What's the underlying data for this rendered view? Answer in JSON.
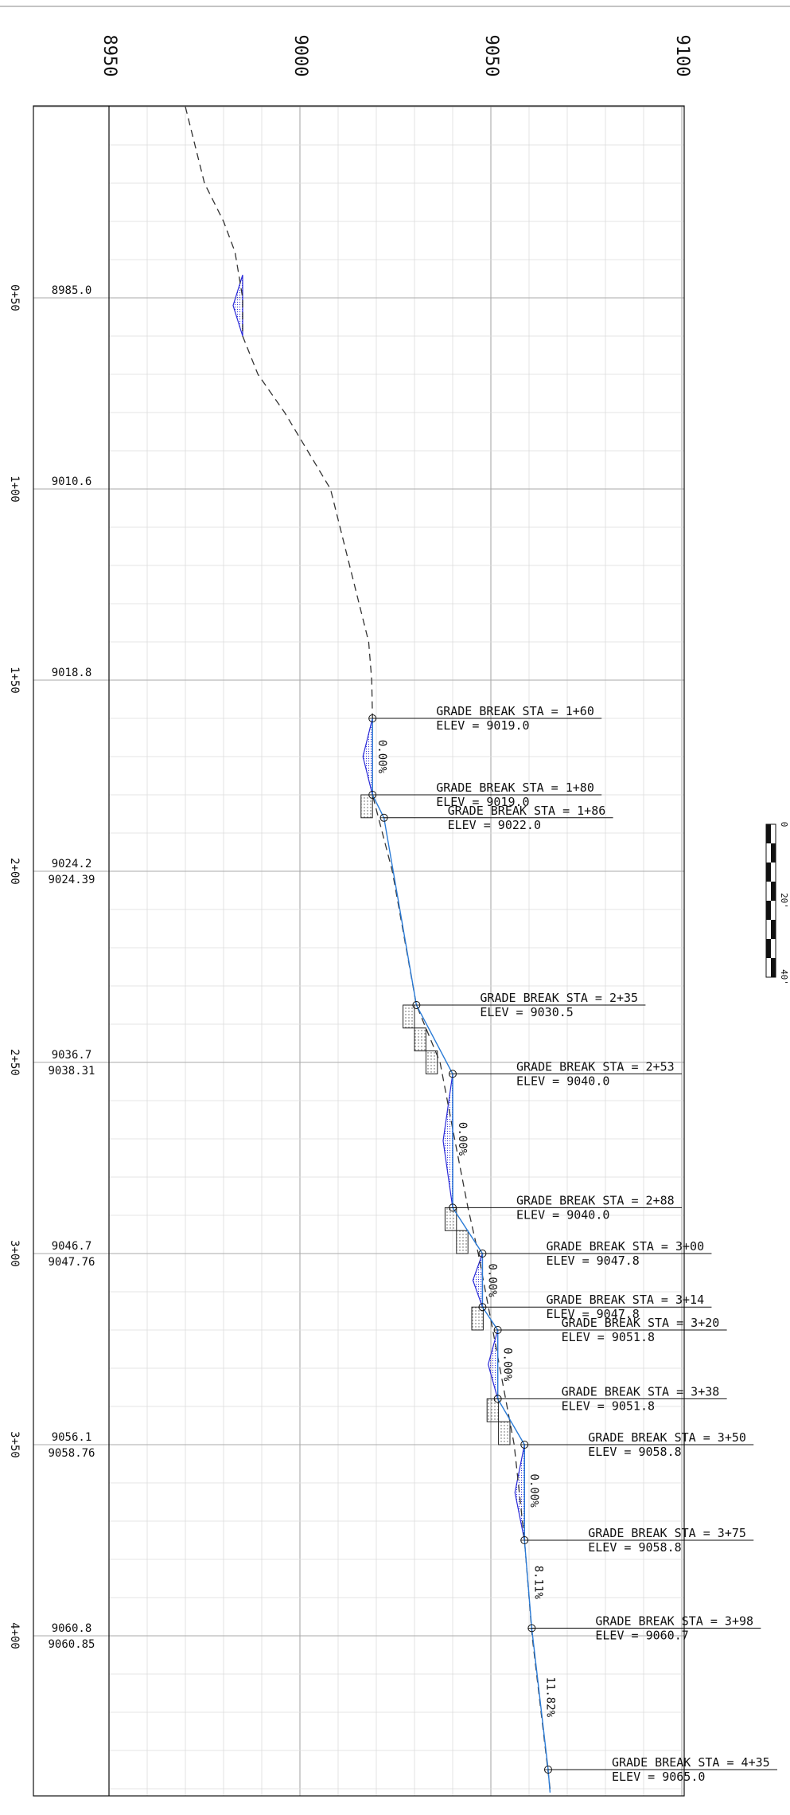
{
  "axis": {
    "ticks": [
      {
        "label": "8950",
        "value": 8950
      },
      {
        "label": "9000",
        "value": 9000
      },
      {
        "label": "9050",
        "value": 9050
      },
      {
        "label": "9100",
        "value": 9100
      }
    ]
  },
  "stations": [
    {
      "label": "0+50",
      "sta": 50,
      "existing": "8985.0",
      "proposed": ""
    },
    {
      "label": "1+00",
      "sta": 100,
      "existing": "9010.6",
      "proposed": ""
    },
    {
      "label": "1+50",
      "sta": 150,
      "existing": "9018.8",
      "proposed": ""
    },
    {
      "label": "2+00",
      "sta": 200,
      "existing": "9024.2",
      "proposed": "9024.39"
    },
    {
      "label": "2+50",
      "sta": 250,
      "existing": "9036.7",
      "proposed": "9038.31"
    },
    {
      "label": "3+00",
      "sta": 300,
      "existing": "9046.7",
      "proposed": "9047.76"
    },
    {
      "label": "3+50",
      "sta": 350,
      "existing": "9056.1",
      "proposed": "9058.76"
    },
    {
      "label": "4+00",
      "sta": 400,
      "existing": "9060.8",
      "proposed": "9060.85"
    }
  ],
  "grade_breaks": [
    {
      "sta_text": "GRADE BREAK STA = 1+60",
      "elev_text": "ELEV =   9019.0",
      "sta": 160,
      "elev": 9019.0
    },
    {
      "sta_text": "GRADE BREAK STA = 1+80",
      "elev_text": "ELEV =   9019.0",
      "sta": 180,
      "elev": 9019.0
    },
    {
      "sta_text": "GRADE BREAK STA = 1+86",
      "elev_text": "ELEV =   9022.0",
      "sta": 186,
      "elev": 9022.0
    },
    {
      "sta_text": "GRADE BREAK STA = 2+35",
      "elev_text": "ELEV =   9030.5",
      "sta": 235,
      "elev": 9030.5
    },
    {
      "sta_text": "GRADE BREAK STA = 2+53",
      "elev_text": "ELEV =   9040.0",
      "sta": 253,
      "elev": 9040.0
    },
    {
      "sta_text": "GRADE BREAK STA = 2+88",
      "elev_text": "ELEV =   9040.0",
      "sta": 288,
      "elev": 9040.0
    },
    {
      "sta_text": "GRADE BREAK STA = 3+00",
      "elev_text": "ELEV =   9047.8",
      "sta": 300,
      "elev": 9047.8
    },
    {
      "sta_text": "GRADE BREAK STA = 3+14",
      "elev_text": "ELEV =   9047.8",
      "sta": 314,
      "elev": 9047.8
    },
    {
      "sta_text": "GRADE BREAK STA = 3+20",
      "elev_text": "ELEV =   9051.8",
      "sta": 320,
      "elev": 9051.8
    },
    {
      "sta_text": "GRADE BREAK STA = 3+38",
      "elev_text": "ELEV =   9051.8",
      "sta": 338,
      "elev": 9051.8
    },
    {
      "sta_text": "GRADE BREAK STA = 3+50",
      "elev_text": "ELEV =   9058.8",
      "sta": 350,
      "elev": 9058.8
    },
    {
      "sta_text": "GRADE BREAK STA = 3+75",
      "elev_text": "ELEV =   9058.8",
      "sta": 375,
      "elev": 9058.8
    },
    {
      "sta_text": "GRADE BREAK STA = 3+98",
      "elev_text": "ELEV =   9060.7",
      "sta": 398,
      "elev": 9060.7
    },
    {
      "sta_text": "GRADE BREAK STA = 4+35",
      "elev_text": "ELEV =   9065.0",
      "sta": 435,
      "elev": 9065.0
    }
  ],
  "slopes": [
    {
      "label": "0.00%",
      "sta": 170,
      "elev": 9019.0
    },
    {
      "label": "0.00%",
      "sta": 270,
      "elev": 9040.0
    },
    {
      "label": "0.00%",
      "sta": 307,
      "elev": 9047.8
    },
    {
      "label": "0.00%",
      "sta": 329,
      "elev": 9051.8
    },
    {
      "label": "0.00%",
      "sta": 362,
      "elev": 9058.8
    },
    {
      "label": "8.11%",
      "sta": 386,
      "elev": 9059.9
    },
    {
      "label": "11.82%",
      "sta": 416,
      "elev": 9063.0
    }
  ],
  "existing_ground": [
    {
      "sta": 0,
      "elev": 8970
    },
    {
      "sta": 20,
      "elev": 8975
    },
    {
      "sta": 30,
      "elev": 8980
    },
    {
      "sta": 38,
      "elev": 8983
    },
    {
      "sta": 50,
      "elev": 8985
    },
    {
      "sta": 60,
      "elev": 8985
    },
    {
      "sta": 70,
      "elev": 8989
    },
    {
      "sta": 80,
      "elev": 8996
    },
    {
      "sta": 90,
      "elev": 9002
    },
    {
      "sta": 100,
      "elev": 9008
    },
    {
      "sta": 120,
      "elev": 9013
    },
    {
      "sta": 140,
      "elev": 9018
    },
    {
      "sta": 150,
      "elev": 9018.8
    },
    {
      "sta": 160,
      "elev": 9019
    },
    {
      "sta": 180,
      "elev": 9019
    },
    {
      "sta": 200,
      "elev": 9024.2
    },
    {
      "sta": 235,
      "elev": 9030.5
    },
    {
      "sta": 250,
      "elev": 9036.7
    },
    {
      "sta": 270,
      "elev": 9040.5
    },
    {
      "sta": 288,
      "elev": 9044
    },
    {
      "sta": 300,
      "elev": 9046.7
    },
    {
      "sta": 320,
      "elev": 9050.5
    },
    {
      "sta": 350,
      "elev": 9056.1
    },
    {
      "sta": 375,
      "elev": 9058.8
    },
    {
      "sta": 400,
      "elev": 9060.8
    },
    {
      "sta": 440,
      "elev": 9065.5
    }
  ],
  "fills": [
    {
      "a": 44,
      "b": 60,
      "depth": 2.5
    },
    {
      "a": 160,
      "b": 180,
      "depth": 2.5
    },
    {
      "a": 253,
      "b": 288,
      "depth": 2.5
    },
    {
      "a": 300,
      "b": 314,
      "depth": 2.5
    },
    {
      "a": 320,
      "b": 338,
      "depth": 2.5
    },
    {
      "a": 350,
      "b": 375,
      "depth": 2.5
    }
  ],
  "steps": [
    {
      "sta": 180,
      "elev": 9016
    },
    {
      "sta": 235,
      "elev": 9027
    },
    {
      "sta": 241,
      "elev": 9030
    },
    {
      "sta": 247,
      "elev": 9033
    },
    {
      "sta": 288,
      "elev": 9038
    },
    {
      "sta": 294,
      "elev": 9041
    },
    {
      "sta": 314,
      "elev": 9045
    },
    {
      "sta": 338,
      "elev": 9049
    },
    {
      "sta": 344,
      "elev": 9052
    }
  ],
  "scale_bar": {
    "labels": [
      "0",
      "20'",
      "40'"
    ]
  },
  "colors": {
    "grid_major": "#aaaaaa",
    "grid_minor": "#dcdcdc",
    "existing": "#333333",
    "proposed_centerline": "#2b7bd6",
    "proposed_hatch": "#2a2ad8",
    "text": "#111111"
  }
}
